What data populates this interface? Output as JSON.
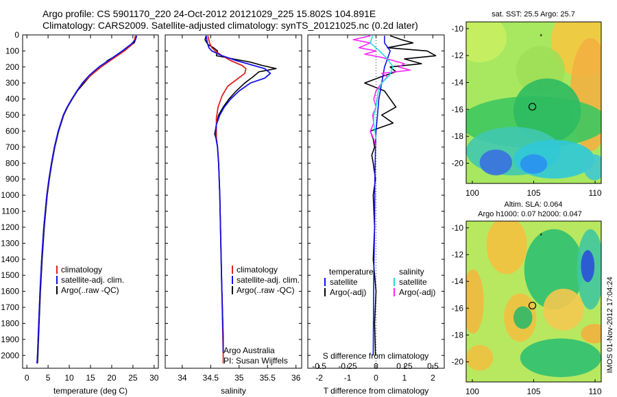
{
  "header": {
    "line1": "Argo profile: CS 5901170_220 24-Oct-2012 20121029_225 15.802S 104.891E",
    "line2": "Climatology: CARS2009. Satellite-adjusted climatology: synTS_20121025.nc (0.2d later)"
  },
  "footer_vertical": "IMOS 01-Nov-2012 17:04:24",
  "colors": {
    "climatology": "#e02020",
    "satellite": "#1010e8",
    "argo": "#000000",
    "satellite_s": "#22dddd",
    "argo_s": "#ff22ff"
  },
  "chart_data": [
    {
      "type": "line",
      "name": "temperature-profile",
      "xlabel": "temperature (deg C)",
      "ylabel": "",
      "xlim": [
        -1,
        31
      ],
      "ylim": [
        2080,
        0
      ],
      "xticks": [
        "0",
        "5",
        "10",
        "15",
        "20",
        "25",
        "30"
      ],
      "yticks": [
        "0",
        "100",
        "200",
        "300",
        "400",
        "500",
        "600",
        "700",
        "800",
        "900",
        "1000",
        "1100",
        "1200",
        "1300",
        "1400",
        "1500",
        "1600",
        "1700",
        "1800",
        "1900",
        "2000"
      ],
      "legend": [
        "climatology",
        "satellite-adj. clim.",
        "Argo(..raw -QC)"
      ],
      "series": [
        {
          "name": "climatology",
          "depth": [
            5,
            30,
            60,
            100,
            150,
            200,
            250,
            300,
            350,
            400,
            450,
            500,
            600,
            700,
            800,
            900,
            1000,
            1200,
            1400,
            1600,
            1800,
            2000,
            2050
          ],
          "values": [
            25.6,
            25.4,
            24.8,
            23.0,
            20.2,
            17.5,
            15.2,
            13.2,
            11.8,
            10.6,
            9.5,
            8.6,
            7.4,
            6.5,
            5.8,
            5.2,
            4.7,
            4.0,
            3.5,
            3.1,
            2.8,
            2.5,
            2.4
          ]
        },
        {
          "name": "satellite-adj. clim.",
          "depth": [
            5,
            30,
            60,
            100,
            150,
            200,
            250,
            300,
            350,
            400,
            450,
            500,
            600,
            700,
            800,
            900,
            1000,
            1200,
            1400,
            1600,
            1800,
            2000,
            2050
          ],
          "values": [
            25.9,
            25.6,
            24.5,
            22.5,
            19.8,
            17.0,
            14.8,
            13.1,
            11.8,
            10.6,
            9.5,
            8.6,
            7.4,
            6.5,
            5.8,
            5.2,
            4.7,
            4.0,
            3.5,
            3.1,
            2.8,
            2.5,
            2.4
          ]
        },
        {
          "name": "Argo(..raw -QC)",
          "depth": [
            5,
            30,
            50,
            70,
            100,
            130,
            160,
            200,
            230,
            260,
            300,
            350,
            400,
            450,
            500,
            600,
            700,
            800,
            900,
            1000,
            1200,
            1400,
            1600,
            1800,
            2000,
            2050
          ],
          "values": [
            25.8,
            25.6,
            25.3,
            24.2,
            23.0,
            21.0,
            19.0,
            17.5,
            16.0,
            14.8,
            13.5,
            11.9,
            10.7,
            9.6,
            8.7,
            7.5,
            6.6,
            5.9,
            5.3,
            4.8,
            4.1,
            3.6,
            3.2,
            2.9,
            2.6,
            2.5
          ]
        }
      ]
    },
    {
      "type": "line",
      "name": "salinity-profile",
      "xlabel": "salinity",
      "xlim": [
        33.7,
        36.1
      ],
      "ylim": [
        2080,
        0
      ],
      "xticks": [
        "34",
        "34.5",
        "35",
        "35.5",
        "36"
      ],
      "legend": [
        "climatology",
        "satellite-adj. clim.",
        "Argo(..raw -QC)"
      ],
      "annotation": [
        "Argo Australia",
        "PI: Susan Wijffels"
      ],
      "series": [
        {
          "name": "climatology",
          "depth": [
            5,
            50,
            80,
            100,
            130,
            160,
            190,
            210,
            240,
            280,
            320,
            380,
            450,
            520,
            580,
            640,
            700,
            800,
            1000,
            1500,
            2000,
            2050
          ],
          "values": [
            34.45,
            34.48,
            34.52,
            34.58,
            34.7,
            34.85,
            35.05,
            35.12,
            35.1,
            34.95,
            34.8,
            34.7,
            34.63,
            34.6,
            34.6,
            34.6,
            34.62,
            34.64,
            34.66,
            34.69,
            34.72,
            34.72
          ]
        },
        {
          "name": "satellite-adj. clim.",
          "depth": [
            5,
            50,
            80,
            100,
            130,
            160,
            190,
            210,
            240,
            270,
            300,
            350,
            400,
            450,
            500,
            560,
            620,
            660,
            700,
            800,
            1000,
            1500,
            1900,
            1980
          ],
          "values": [
            34.42,
            34.44,
            34.47,
            34.52,
            34.7,
            34.95,
            35.25,
            35.45,
            35.55,
            35.45,
            35.2,
            35.0,
            34.85,
            34.74,
            34.66,
            34.6,
            34.58,
            34.6,
            34.62,
            34.64,
            34.66,
            34.69,
            34.72,
            34.72
          ]
        },
        {
          "name": "Argo(..raw -QC)",
          "depth": [
            5,
            30,
            60,
            80,
            100,
            130,
            150,
            170,
            190,
            210,
            230,
            260,
            300,
            350,
            400,
            450,
            500,
            560,
            620,
            650,
            700,
            800,
            1000,
            1500,
            1900,
            1980
          ],
          "values": [
            34.42,
            34.4,
            34.45,
            34.55,
            34.62,
            34.6,
            34.9,
            35.2,
            35.4,
            35.65,
            35.35,
            35.25,
            35.1,
            34.95,
            34.82,
            34.72,
            34.64,
            34.6,
            34.57,
            34.6,
            34.62,
            34.64,
            34.66,
            34.69,
            34.72,
            34.72
          ]
        }
      ]
    },
    {
      "type": "line",
      "name": "difference-profile",
      "xlabel": "T difference from climatology",
      "xlabel_top": "S difference from climatology",
      "xlim": [
        -2.4,
        2.4
      ],
      "ylim": [
        2080,
        0
      ],
      "xticks": [
        "-2",
        "-1",
        "0",
        "1",
        "2"
      ],
      "xticks_top": [
        "-0.5",
        "-0.25",
        "0",
        "0.25",
        "0.5"
      ],
      "legend_left_title": "temperature",
      "legend_right_title": "salinity",
      "legend": [
        "satellite",
        "Argo(-adj)",
        "satellite",
        "Argo(-adj)"
      ],
      "series": [
        {
          "name": "temperature satellite",
          "depth": [
            5,
            50,
            100,
            150,
            200,
            300,
            400,
            500,
            600,
            700,
            900,
            1200,
            1500,
            2000
          ],
          "values": [
            0.3,
            0.3,
            0.5,
            0.4,
            0.3,
            0.2,
            0.1,
            0.05,
            0.0,
            -0.02,
            -0.04,
            -0.05,
            -0.08,
            -0.1
          ]
        },
        {
          "name": "temperature Argo(-adj)",
          "depth": [
            5,
            30,
            50,
            80,
            100,
            130,
            150,
            180,
            200,
            230,
            260,
            300,
            350,
            400,
            450,
            500,
            550,
            600,
            650,
            700,
            750,
            800,
            900,
            1000,
            1200,
            1400,
            1600,
            1800,
            2000
          ],
          "values": [
            0.5,
            0.9,
            1.3,
            0.4,
            1.8,
            2.1,
            1.0,
            1.6,
            0.5,
            0.7,
            0.2,
            -0.4,
            0.3,
            0.5,
            0.7,
            0.2,
            0.6,
            -0.2,
            -0.1,
            -0.05,
            -0.15,
            -0.1,
            -0.02,
            -0.1,
            -0.05,
            -0.1,
            0.0,
            -0.05,
            -0.02
          ]
        },
        {
          "name": "salinity satellite",
          "depth": [
            5,
            50,
            100,
            150,
            200,
            250,
            300,
            350,
            400,
            450,
            500,
            550,
            600,
            650
          ],
          "values": [
            -0.03,
            -0.05,
            0.03,
            0.1,
            0.15,
            0.12,
            0.05,
            0.02,
            0.01,
            0.0,
            -0.02,
            -0.02,
            -0.01,
            0.0
          ]
        },
        {
          "name": "salinity Argo(-adj)",
          "depth": [
            5,
            30,
            50,
            80,
            100,
            120,
            140,
            160,
            180,
            200,
            220,
            240,
            260,
            300,
            350,
            400,
            450,
            500,
            550,
            600,
            650,
            700
          ],
          "values": [
            -0.05,
            -0.2,
            -0.05,
            -0.15,
            0.0,
            -0.1,
            0.05,
            0.15,
            0.25,
            0.2,
            0.3,
            0.05,
            0.1,
            0.05,
            0.0,
            -0.02,
            0.0,
            -0.03,
            -0.02,
            -0.05,
            -0.02,
            0.0
          ]
        }
      ]
    },
    {
      "type": "heatmap",
      "name": "sst-map",
      "title": "sat. SST: 25.5  Argo: 25.7",
      "xlim": [
        99.5,
        110.5
      ],
      "ylim": [
        -21.5,
        -9.5
      ],
      "xticks": [
        "100",
        "105",
        "110"
      ],
      "yticks": [
        "-10",
        "-12",
        "-14",
        "-16",
        "-18",
        "-20"
      ],
      "float_position": [
        104.891,
        -15.802
      ],
      "marker_position": [
        105.6,
        -10.6
      ]
    },
    {
      "type": "heatmap",
      "name": "sla-map",
      "title": "Altim. SLA: 0.064",
      "subtitle": "Argo h1000: 0.07 h2000: 0.047",
      "xlim": [
        99.5,
        110.5
      ],
      "ylim": [
        -21.5,
        -9.5
      ],
      "xticks": [
        "100",
        "105",
        "110"
      ],
      "yticks": [
        "-10",
        "-12",
        "-14",
        "-16",
        "-18",
        "-20"
      ],
      "float_position": [
        104.891,
        -15.802
      ],
      "marker_position": [
        105.6,
        -10.6
      ]
    }
  ]
}
